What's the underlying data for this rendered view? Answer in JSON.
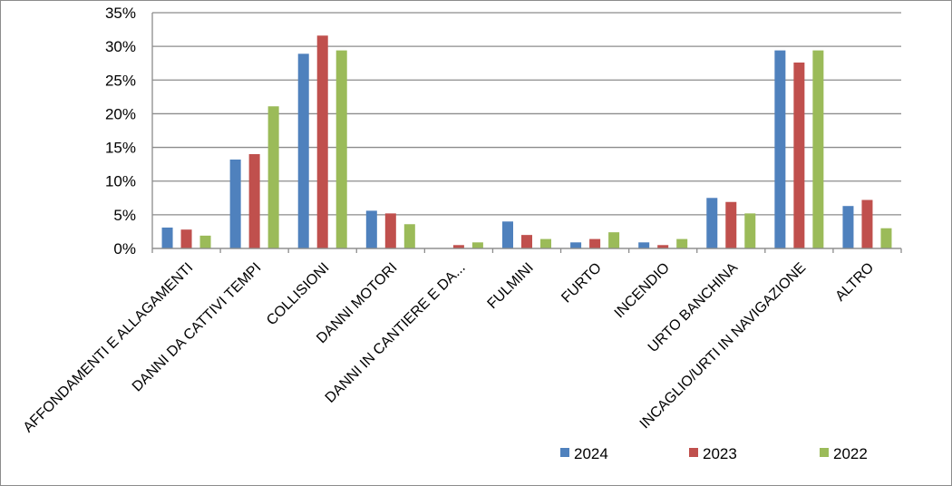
{
  "chart_data": {
    "type": "bar",
    "title": "",
    "xlabel": "",
    "ylabel": "",
    "ylim": [
      0,
      35
    ],
    "y_ticks": [
      "0%",
      "5%",
      "10%",
      "15%",
      "20%",
      "25%",
      "30%",
      "35%"
    ],
    "grid": true,
    "legend_position": "bottom-right",
    "categories": [
      "AFFONDAMENTI E ALLAGAMENTI",
      "DANNI DA CATTIVI TEMPI",
      "COLLISIONI",
      "DANNI MOTORI",
      "DANNI IN CANTIERE E DA...",
      "FULMINI",
      "FURTO",
      "INCENDIO",
      "URTO BANCHINA",
      "INCAGLIO/URTI IN NAVIGAZIONE",
      "ALTRO"
    ],
    "series": [
      {
        "name": "2024",
        "color": "#4f81bd",
        "values": [
          3.1,
          13.2,
          28.9,
          5.6,
          0,
          4.0,
          0.9,
          0.9,
          7.5,
          29.4,
          6.3
        ]
      },
      {
        "name": "2023",
        "color": "#c0504d",
        "values": [
          2.8,
          14.0,
          31.6,
          5.2,
          0.5,
          2.0,
          1.4,
          0.5,
          6.9,
          27.6,
          7.2
        ]
      },
      {
        "name": "2022",
        "color": "#9bbb59",
        "values": [
          1.9,
          21.1,
          29.4,
          3.6,
          0.9,
          1.4,
          2.4,
          1.4,
          5.2,
          29.4,
          3.0
        ]
      }
    ]
  }
}
